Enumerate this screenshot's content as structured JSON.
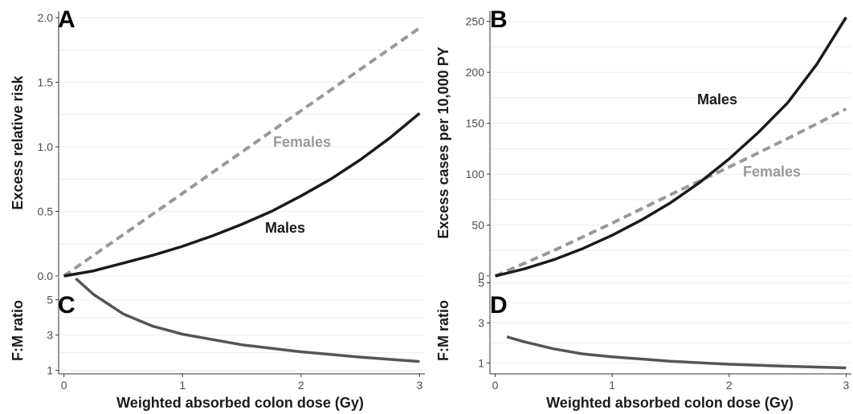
{
  "chart_data": [
    {
      "panel": "A",
      "type": "line",
      "ylabel": "Excess relative risk",
      "xlim": [
        0,
        3
      ],
      "ylim": [
        0,
        2.05
      ],
      "yticks": [
        0.0,
        0.5,
        1.0,
        1.5,
        2.0
      ],
      "ytick_labels": [
        "0.0",
        "0.5",
        "1.0",
        "1.5",
        "2.0"
      ],
      "xticks": [
        0,
        1,
        2,
        3
      ],
      "xtick_labels": [
        "0",
        "1",
        "2",
        "3"
      ],
      "grid": true,
      "series": [
        {
          "name": "Females",
          "color": "#999999",
          "dash": "dashed",
          "x": [
            0,
            0.5,
            1,
            1.5,
            2,
            2.5,
            3
          ],
          "y": [
            0,
            0.32,
            0.64,
            0.96,
            1.28,
            1.6,
            1.92
          ]
        },
        {
          "name": "Males",
          "color": "#1a1a1a",
          "dash": "solid",
          "x": [
            0,
            0.25,
            0.5,
            0.75,
            1,
            1.25,
            1.5,
            1.75,
            2,
            2.25,
            2.5,
            2.75,
            3
          ],
          "y": [
            0,
            0.04,
            0.1,
            0.16,
            0.23,
            0.31,
            0.4,
            0.5,
            0.62,
            0.75,
            0.9,
            1.07,
            1.26
          ]
        }
      ]
    },
    {
      "panel": "B",
      "type": "line",
      "ylabel": "Excess cases per 10,000 PY",
      "xlim": [
        0,
        3
      ],
      "ylim": [
        0,
        260
      ],
      "yticks": [
        0,
        50,
        100,
        150,
        200,
        250
      ],
      "ytick_labels": [
        "0",
        "50",
        "100",
        "150",
        "200",
        "250"
      ],
      "xticks": [
        0,
        1,
        2,
        3
      ],
      "xtick_labels": [
        "0",
        "1",
        "2",
        "3"
      ],
      "grid": true,
      "series": [
        {
          "name": "Females",
          "color": "#999999",
          "dash": "dashed",
          "x": [
            0,
            0.5,
            1,
            1.5,
            2,
            2.5,
            3
          ],
          "y": [
            0,
            25,
            52,
            80,
            107,
            135,
            164
          ]
        },
        {
          "name": "Males",
          "color": "#1a1a1a",
          "dash": "solid",
          "x": [
            0,
            0.25,
            0.5,
            0.75,
            1,
            1.25,
            1.5,
            1.75,
            2,
            2.25,
            2.5,
            2.75,
            3
          ],
          "y": [
            0,
            7,
            16,
            27,
            40,
            55,
            72,
            92,
            115,
            141,
            170,
            208,
            254
          ]
        }
      ]
    },
    {
      "panel": "C",
      "type": "line",
      "ylabel": "F:M ratio",
      "xlabel": "Weighted absorbed colon dose (Gy)",
      "xlim": [
        0,
        3
      ],
      "ylim": [
        0.8,
        6.3
      ],
      "yticks": [
        1,
        3,
        5
      ],
      "ytick_labels": [
        "1",
        "3",
        "5"
      ],
      "xticks": [
        0,
        1,
        2,
        3
      ],
      "xtick_labels": [
        "0",
        "1",
        "2",
        "3"
      ],
      "grid": true,
      "series": [
        {
          "color": "#555555",
          "dash": "solid",
          "x": [
            0.1,
            0.25,
            0.5,
            0.75,
            1,
            1.5,
            2,
            2.5,
            3
          ],
          "y": [
            6.2,
            5.3,
            4.2,
            3.5,
            3.05,
            2.45,
            2.05,
            1.75,
            1.5
          ]
        }
      ]
    },
    {
      "panel": "D",
      "type": "line",
      "ylabel": "F:M ratio",
      "xlabel": "Weighted absorbed colon dose (Gy)",
      "xlim": [
        0,
        3
      ],
      "ylim": [
        0.45,
        5.3
      ],
      "yticks": [
        1,
        3,
        5
      ],
      "ytick_labels": [
        "1",
        "3",
        "5"
      ],
      "xticks": [
        0,
        1,
        2,
        3
      ],
      "xtick_labels": [
        "0",
        "1",
        "2",
        "3"
      ],
      "grid": true,
      "series": [
        {
          "color": "#555555",
          "dash": "solid",
          "x": [
            0.1,
            0.25,
            0.5,
            0.75,
            1,
            1.5,
            2,
            2.5,
            3
          ],
          "y": [
            2.3,
            2.05,
            1.7,
            1.45,
            1.3,
            1.08,
            0.93,
            0.83,
            0.75
          ]
        }
      ]
    }
  ]
}
